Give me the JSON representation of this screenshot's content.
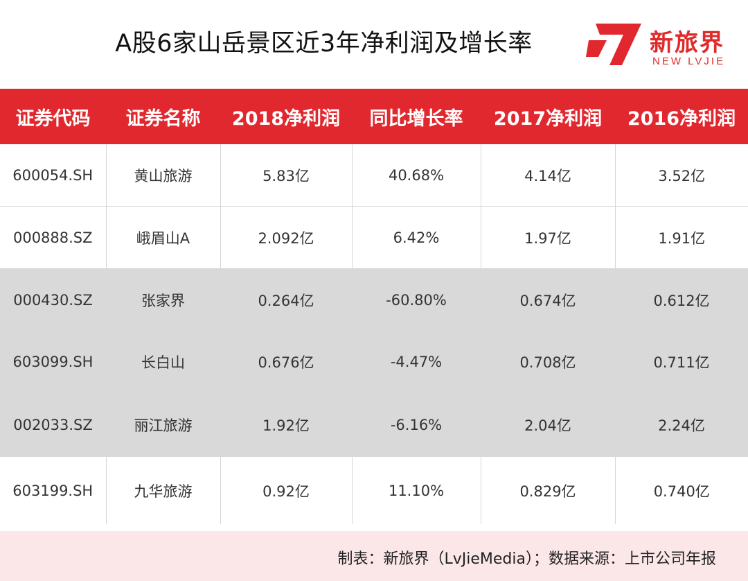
{
  "title": "A股6家山岳景区近3年净利润及增长率",
  "logo": {
    "name": "新旅界",
    "subtitle": "NEW LVJIE",
    "brand_color": "#e1282e"
  },
  "chart_data": {
    "type": "table",
    "columns": [
      "证券代码",
      "证券名称",
      "2018净利润",
      "同比增长率",
      "2017净利润",
      "2016净利润"
    ],
    "rows": [
      [
        "600054.SH",
        "黄山旅游",
        "5.83亿",
        "40.68%",
        "4.14亿",
        "3.52亿"
      ],
      [
        "000888.SZ",
        "峨眉山A",
        "2.092亿",
        "6.42%",
        "1.97亿",
        "1.91亿"
      ],
      [
        "000430.SZ",
        "张家界",
        "0.264亿",
        "-60.80%",
        "0.674亿",
        "0.612亿"
      ],
      [
        "603099.SH",
        "长白山",
        "0.676亿",
        "-4.47%",
        "0.708亿",
        "0.711亿"
      ],
      [
        "002033.SZ",
        "丽江旅游",
        "1.92亿",
        "-6.16%",
        "2.04亿",
        "2.24亿"
      ],
      [
        "603199.SH",
        "九华旅游",
        "0.92亿",
        "11.10%",
        "0.829亿",
        "0.740亿"
      ]
    ],
    "highlighted_rows": [
      2,
      3,
      4
    ],
    "header_color": "#e1282e",
    "highlight_color": "#d9d9d9"
  },
  "footer": {
    "text": "制表：新旅界（LvJieMedia）；数据来源：上市公司年报"
  }
}
